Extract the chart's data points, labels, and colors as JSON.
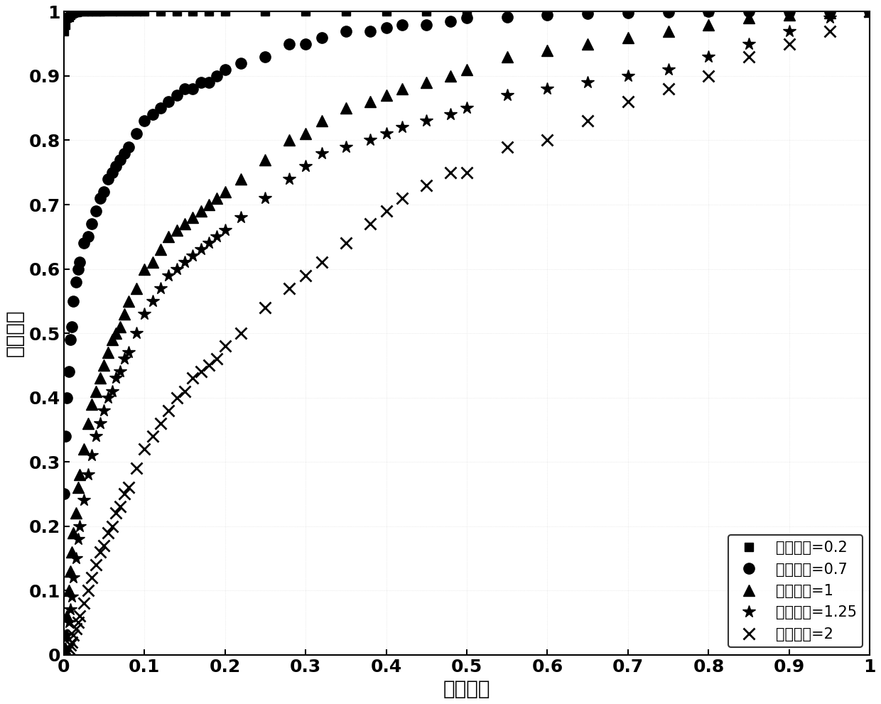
{
  "xlabel": "虚警概率",
  "ylabel": "检测概率",
  "xlim": [
    0,
    1
  ],
  "ylim": [
    0,
    1
  ],
  "xticks": [
    0,
    0.1,
    0.2,
    0.3,
    0.4,
    0.5,
    0.6,
    0.7,
    0.8,
    0.9,
    1.0
  ],
  "yticks": [
    0,
    0.1,
    0.2,
    0.3,
    0.4,
    0.5,
    0.6,
    0.7,
    0.8,
    0.9,
    1.0
  ],
  "background_color": "#ffffff",
  "marker_color": "#000000",
  "series": [
    {
      "label": "不确定度=0.2",
      "marker": "s",
      "markersize": 9,
      "linestyle": "none",
      "x": [
        0.0,
        0.002,
        0.004,
        0.006,
        0.008,
        0.01,
        0.012,
        0.014,
        0.016,
        0.018,
        0.02,
        0.025,
        0.03,
        0.035,
        0.04,
        0.045,
        0.05,
        0.06,
        0.07,
        0.08,
        0.09,
        0.1,
        0.12,
        0.14,
        0.16,
        0.18,
        0.2,
        0.25,
        0.3,
        0.35,
        0.4,
        0.45,
        0.5,
        0.6,
        0.7,
        0.8,
        0.9,
        1.0
      ],
      "y": [
        0.97,
        0.98,
        0.99,
        0.992,
        0.995,
        0.997,
        0.998,
        0.999,
        0.999,
        1.0,
        1.0,
        1.0,
        1.0,
        1.0,
        1.0,
        1.0,
        1.0,
        1.0,
        1.0,
        1.0,
        1.0,
        1.0,
        1.0,
        1.0,
        1.0,
        1.0,
        1.0,
        1.0,
        1.0,
        1.0,
        1.0,
        1.0,
        1.0,
        1.0,
        1.0,
        1.0,
        1.0,
        1.0
      ]
    },
    {
      "label": "不确定度=0.7",
      "marker": "o",
      "markersize": 11,
      "linestyle": "none",
      "x": [
        0.0,
        0.002,
        0.004,
        0.006,
        0.008,
        0.01,
        0.012,
        0.015,
        0.018,
        0.02,
        0.025,
        0.03,
        0.035,
        0.04,
        0.045,
        0.05,
        0.055,
        0.06,
        0.065,
        0.07,
        0.075,
        0.08,
        0.09,
        0.1,
        0.11,
        0.12,
        0.13,
        0.14,
        0.15,
        0.16,
        0.17,
        0.18,
        0.19,
        0.2,
        0.22,
        0.25,
        0.28,
        0.3,
        0.32,
        0.35,
        0.38,
        0.4,
        0.42,
        0.45,
        0.48,
        0.5,
        0.55,
        0.6,
        0.65,
        0.7,
        0.75,
        0.8,
        0.85,
        0.9,
        0.95,
        1.0
      ],
      "y": [
        0.25,
        0.34,
        0.4,
        0.44,
        0.49,
        0.51,
        0.55,
        0.58,
        0.6,
        0.61,
        0.64,
        0.65,
        0.67,
        0.69,
        0.71,
        0.72,
        0.74,
        0.75,
        0.76,
        0.77,
        0.78,
        0.79,
        0.81,
        0.83,
        0.84,
        0.85,
        0.86,
        0.87,
        0.88,
        0.88,
        0.89,
        0.89,
        0.9,
        0.91,
        0.92,
        0.93,
        0.95,
        0.95,
        0.96,
        0.97,
        0.97,
        0.975,
        0.98,
        0.98,
        0.985,
        0.99,
        0.992,
        0.995,
        0.997,
        0.998,
        0.999,
        1.0,
        1.0,
        1.0,
        1.0,
        1.0
      ]
    },
    {
      "label": "不确定度=1",
      "marker": "^",
      "markersize": 11,
      "linestyle": "none",
      "x": [
        0.0,
        0.002,
        0.004,
        0.006,
        0.008,
        0.01,
        0.012,
        0.015,
        0.018,
        0.02,
        0.025,
        0.03,
        0.035,
        0.04,
        0.045,
        0.05,
        0.055,
        0.06,
        0.065,
        0.07,
        0.075,
        0.08,
        0.09,
        0.1,
        0.11,
        0.12,
        0.13,
        0.14,
        0.15,
        0.16,
        0.17,
        0.18,
        0.19,
        0.2,
        0.22,
        0.25,
        0.28,
        0.3,
        0.32,
        0.35,
        0.38,
        0.4,
        0.42,
        0.45,
        0.48,
        0.5,
        0.55,
        0.6,
        0.65,
        0.7,
        0.75,
        0.8,
        0.85,
        0.9,
        0.95,
        1.0
      ],
      "y": [
        0.0,
        0.03,
        0.06,
        0.1,
        0.13,
        0.16,
        0.19,
        0.22,
        0.26,
        0.28,
        0.32,
        0.36,
        0.39,
        0.41,
        0.43,
        0.45,
        0.47,
        0.49,
        0.5,
        0.51,
        0.53,
        0.55,
        0.57,
        0.6,
        0.61,
        0.63,
        0.65,
        0.66,
        0.67,
        0.68,
        0.69,
        0.7,
        0.71,
        0.72,
        0.74,
        0.77,
        0.8,
        0.81,
        0.83,
        0.85,
        0.86,
        0.87,
        0.88,
        0.89,
        0.9,
        0.91,
        0.93,
        0.94,
        0.95,
        0.96,
        0.97,
        0.98,
        0.99,
        0.995,
        0.998,
        1.0
      ]
    },
    {
      "label": "不确定度=1.25",
      "marker": "*",
      "markersize": 13,
      "linestyle": "none",
      "x": [
        0.0,
        0.002,
        0.004,
        0.006,
        0.008,
        0.01,
        0.012,
        0.015,
        0.018,
        0.02,
        0.025,
        0.03,
        0.035,
        0.04,
        0.045,
        0.05,
        0.055,
        0.06,
        0.065,
        0.07,
        0.075,
        0.08,
        0.09,
        0.1,
        0.11,
        0.12,
        0.13,
        0.14,
        0.15,
        0.16,
        0.17,
        0.18,
        0.19,
        0.2,
        0.22,
        0.25,
        0.28,
        0.3,
        0.32,
        0.35,
        0.38,
        0.4,
        0.42,
        0.45,
        0.48,
        0.5,
        0.55,
        0.6,
        0.65,
        0.7,
        0.75,
        0.8,
        0.85,
        0.9,
        0.95,
        1.0
      ],
      "y": [
        0.0,
        0.01,
        0.03,
        0.05,
        0.07,
        0.09,
        0.12,
        0.15,
        0.18,
        0.2,
        0.24,
        0.28,
        0.31,
        0.34,
        0.36,
        0.38,
        0.4,
        0.41,
        0.43,
        0.44,
        0.46,
        0.47,
        0.5,
        0.53,
        0.55,
        0.57,
        0.59,
        0.6,
        0.61,
        0.62,
        0.63,
        0.64,
        0.65,
        0.66,
        0.68,
        0.71,
        0.74,
        0.76,
        0.78,
        0.79,
        0.8,
        0.81,
        0.82,
        0.83,
        0.84,
        0.85,
        0.87,
        0.88,
        0.89,
        0.9,
        0.91,
        0.93,
        0.95,
        0.97,
        0.99,
        1.0
      ]
    },
    {
      "label": "不确定度=2",
      "marker": "x",
      "markersize": 11,
      "linestyle": "none",
      "x": [
        0.0,
        0.002,
        0.004,
        0.006,
        0.008,
        0.01,
        0.012,
        0.015,
        0.018,
        0.02,
        0.025,
        0.03,
        0.035,
        0.04,
        0.045,
        0.05,
        0.055,
        0.06,
        0.065,
        0.07,
        0.075,
        0.08,
        0.09,
        0.1,
        0.11,
        0.12,
        0.13,
        0.14,
        0.15,
        0.16,
        0.17,
        0.18,
        0.19,
        0.2,
        0.22,
        0.25,
        0.28,
        0.3,
        0.32,
        0.35,
        0.38,
        0.4,
        0.42,
        0.45,
        0.48,
        0.5,
        0.55,
        0.6,
        0.65,
        0.7,
        0.75,
        0.8,
        0.85,
        0.9,
        0.95,
        1.0
      ],
      "y": [
        0.0,
        0.0,
        0.005,
        0.01,
        0.015,
        0.02,
        0.03,
        0.04,
        0.05,
        0.06,
        0.08,
        0.1,
        0.12,
        0.14,
        0.16,
        0.17,
        0.19,
        0.2,
        0.22,
        0.23,
        0.25,
        0.26,
        0.29,
        0.32,
        0.34,
        0.36,
        0.38,
        0.4,
        0.41,
        0.43,
        0.44,
        0.45,
        0.46,
        0.48,
        0.5,
        0.54,
        0.57,
        0.59,
        0.61,
        0.64,
        0.67,
        0.69,
        0.71,
        0.73,
        0.75,
        0.75,
        0.79,
        0.8,
        0.83,
        0.86,
        0.88,
        0.9,
        0.93,
        0.95,
        0.97,
        1.0
      ]
    }
  ],
  "legend_loc": "lower right",
  "font_size": 20,
  "tick_font_size": 18,
  "marker_linewidth": 1.5,
  "legend_font_size": 15
}
